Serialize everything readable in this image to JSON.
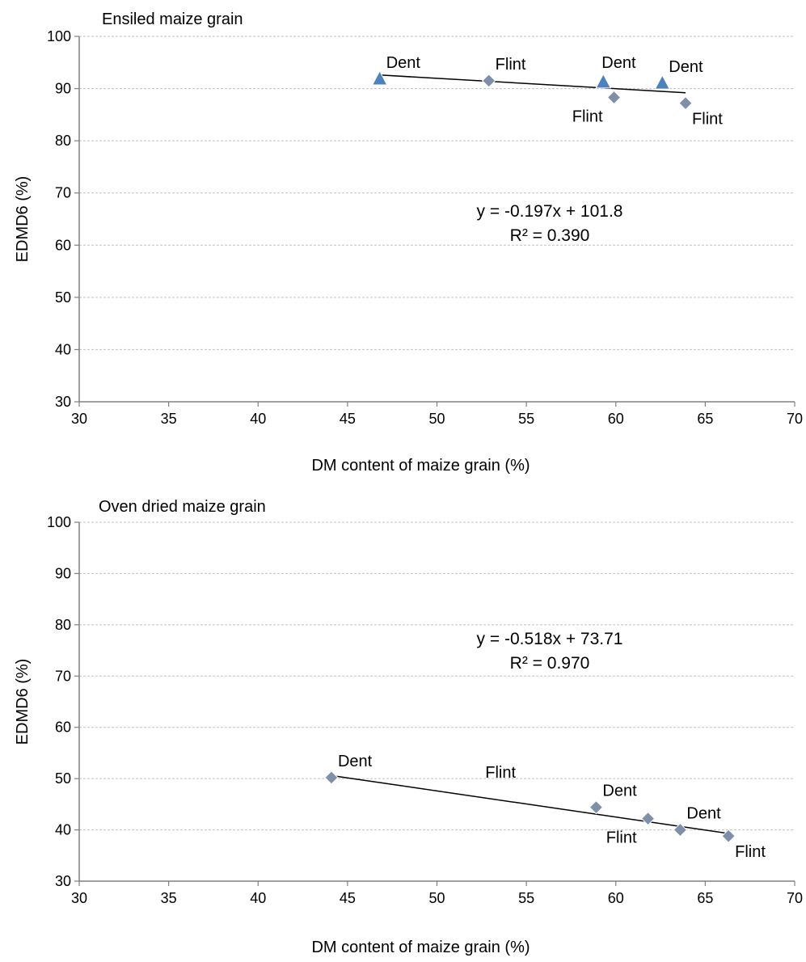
{
  "chart_data": [
    {
      "type": "scatter",
      "title": "Ensiled maize grain",
      "xlabel": "DM content of maize grain (%)",
      "ylabel": "EDMD6 (%)",
      "xlim": [
        30,
        70
      ],
      "ylim": [
        30,
        100
      ],
      "xticks": [
        "30",
        "35",
        "40",
        "45",
        "50",
        "55",
        "60",
        "65",
        "70"
      ],
      "yticks": [
        "30",
        "40",
        "50",
        "60",
        "70",
        "80",
        "90",
        "100"
      ],
      "grid": "horizontal",
      "colors": {
        "dent": "#4f81bd",
        "flint": "#7f8fa9"
      },
      "series": [
        {
          "marker": "triangle",
          "x": [
            46.8,
            59.3,
            62.6
          ],
          "y": [
            91.8,
            91.2,
            91.0
          ]
        },
        {
          "marker": "diamond",
          "x": [
            52.9,
            59.9,
            63.9
          ],
          "y": [
            91.5,
            88.3,
            87.2
          ]
        }
      ],
      "point_labels": [
        {
          "text": "Dent",
          "x": 46.8,
          "y": 91.8,
          "pos": "above-right"
        },
        {
          "text": "Flint",
          "x": 52.9,
          "y": 91.5,
          "pos": "above-right"
        },
        {
          "text": "Dent",
          "x": 59.3,
          "y": 91.2,
          "pos": "above"
        },
        {
          "text": "Flint",
          "x": 59.9,
          "y": 88.3,
          "pos": "below-left"
        },
        {
          "text": "Dent",
          "x": 62.6,
          "y": 91.0,
          "pos": "above-right"
        },
        {
          "text": "Flint",
          "x": 63.9,
          "y": 87.2,
          "pos": "below-right"
        }
      ],
      "trendline": {
        "x": [
          46.8,
          63.9
        ],
        "y": [
          92.6,
          89.2
        ]
      },
      "annotation": [
        "y = -0.197x  + 101.8",
        "R² = 0.390"
      ]
    },
    {
      "type": "scatter",
      "title": "Oven dried maize grain",
      "xlabel": "DM content of maize grain (%)",
      "ylabel": "EDMD6 (%)",
      "xlim": [
        30,
        70
      ],
      "ylim": [
        30,
        100
      ],
      "xticks": [
        "30",
        "35",
        "40",
        "45",
        "50",
        "55",
        "60",
        "65",
        "70"
      ],
      "yticks": [
        "30",
        "40",
        "50",
        "60",
        "70",
        "80",
        "90",
        "100"
      ],
      "grid": "horizontal",
      "colors": {
        "points": "#7f8fa9"
      },
      "series": [
        {
          "marker": "diamond",
          "x": [
            44.1,
            58.9,
            61.8,
            63.6,
            66.3
          ],
          "y": [
            50.2,
            44.4,
            42.2,
            40.0,
            38.8
          ]
        }
      ],
      "point_labels": [
        {
          "text": "Dent",
          "x": 44.1,
          "y": 50.2,
          "pos": "above-right"
        },
        {
          "text": "Flint",
          "x": 52.7,
          "y": 50.2,
          "pos": "free"
        },
        {
          "text": "Dent",
          "x": 58.9,
          "y": 44.4,
          "pos": "above-right"
        },
        {
          "text": "Flint",
          "x": 61.8,
          "y": 42.2,
          "pos": "below-left"
        },
        {
          "text": "Dent",
          "x": 63.6,
          "y": 40.0,
          "pos": "above-right"
        },
        {
          "text": "Flint",
          "x": 66.3,
          "y": 38.8,
          "pos": "below-right"
        }
      ],
      "trendline": {
        "x": [
          44.1,
          66.3
        ],
        "y": [
          50.6,
          39.3
        ]
      },
      "annotation": [
        "y = -0.518x  + 73.71",
        "R² = 0.970"
      ]
    }
  ]
}
